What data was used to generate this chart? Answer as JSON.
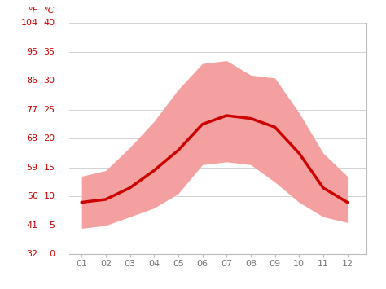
{
  "months": [
    1,
    2,
    3,
    4,
    5,
    6,
    7,
    8,
    9,
    10,
    11,
    12
  ],
  "month_labels": [
    "01",
    "02",
    "03",
    "04",
    "05",
    "06",
    "07",
    "08",
    "09",
    "10",
    "11",
    "12"
  ],
  "mean_temp_c": [
    9.0,
    9.5,
    11.5,
    14.5,
    18.0,
    22.5,
    24.0,
    23.5,
    22.0,
    17.5,
    11.5,
    9.0
  ],
  "max_temp_c": [
    13.5,
    14.5,
    18.5,
    23.0,
    28.5,
    33.0,
    33.5,
    31.0,
    30.5,
    24.5,
    17.5,
    13.5
  ],
  "min_temp_c": [
    4.5,
    5.0,
    6.5,
    8.0,
    10.5,
    15.5,
    16.0,
    15.5,
    12.5,
    9.0,
    6.5,
    5.5
  ],
  "line_color": "#cc0000",
  "fill_color": "#f4a0a0",
  "bg_color": "#ffffff",
  "grid_color": "#cccccc",
  "tick_color": "#cc0000",
  "spine_color": "#bbbbbb",
  "xlabel_color": "#777777",
  "ylim_c": [
    0,
    40
  ],
  "yticks_c": [
    0,
    5,
    10,
    15,
    20,
    25,
    30,
    35,
    40
  ],
  "yticks_f": [
    32,
    41,
    50,
    59,
    68,
    77,
    86,
    95,
    104
  ],
  "line_width": 2.5,
  "tick_fontsize": 8,
  "header_fontsize": 8
}
